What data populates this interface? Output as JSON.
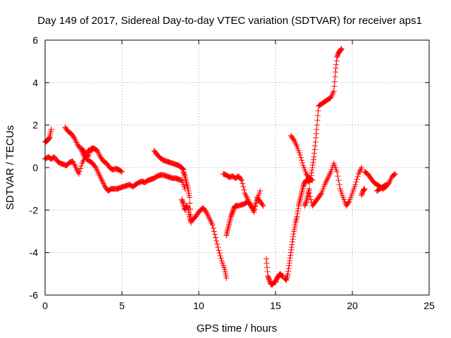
{
  "chart_data": {
    "type": "scatter",
    "title": "Day 149 of 2017, Sidereal Day-to-day VTEC variation (SDTVAR) for receiver aps1",
    "xlabel": "GPS time / hours",
    "ylabel": "SDTVAR / TECUs",
    "xlim": [
      0,
      25
    ],
    "ylim": [
      -6,
      6
    ],
    "xticks": [
      0,
      5,
      10,
      15,
      20,
      25
    ],
    "yticks": [
      -6,
      -4,
      -2,
      0,
      2,
      4,
      6
    ],
    "grid": true,
    "legend": "none",
    "marker": "plus",
    "color": "#ff0000",
    "series": [
      {
        "x": [
          0.0,
          0.1,
          0.2,
          0.3,
          0.4
        ],
        "y": [
          1.2,
          1.25,
          1.3,
          1.45,
          1.8
        ]
      },
      {
        "x": [
          0.0,
          0.2,
          0.4,
          0.6,
          0.8,
          1.0,
          1.2,
          1.4,
          1.6,
          1.8,
          2.0,
          2.2,
          2.4,
          2.6,
          2.8,
          3.0,
          3.2
        ],
        "y": [
          0.4,
          0.5,
          0.4,
          0.5,
          0.3,
          0.2,
          0.15,
          0.1,
          0.25,
          0.3,
          0.0,
          -0.3,
          0.2,
          0.5,
          0.8,
          0.85,
          0.9
        ]
      },
      {
        "x": [
          1.3,
          1.5,
          1.7,
          1.9,
          2.1,
          2.3,
          2.5,
          2.7,
          2.9,
          3.1,
          3.3,
          3.5,
          3.7,
          3.9,
          4.1,
          4.3,
          4.5,
          4.7,
          4.9,
          5.1,
          5.3,
          5.5,
          5.7,
          5.9,
          6.1,
          6.3,
          6.5,
          6.7,
          6.9,
          7.1,
          7.3,
          7.5,
          7.7,
          7.9,
          8.1,
          8.3,
          8.5,
          8.7,
          8.9,
          9.1
        ],
        "y": [
          1.9,
          1.7,
          1.6,
          1.4,
          1.1,
          0.9,
          0.6,
          0.4,
          0.3,
          0.2,
          0.0,
          -0.3,
          -0.6,
          -0.9,
          -1.1,
          -1.0,
          -1.0,
          -1.0,
          -0.95,
          -0.9,
          -0.85,
          -0.8,
          -0.9,
          -0.8,
          -0.7,
          -0.65,
          -0.7,
          -0.6,
          -0.55,
          -0.5,
          -0.4,
          -0.35,
          -0.35,
          -0.4,
          -0.45,
          -0.5,
          -0.5,
          -0.55,
          -0.6,
          -1.0
        ]
      },
      {
        "x": [
          2.4,
          2.6,
          2.8,
          3.0,
          3.2,
          3.4,
          3.6,
          3.8,
          4.0,
          4.2,
          4.4,
          4.6,
          4.8,
          5.0
        ],
        "y": [
          0.9,
          0.7,
          0.5,
          0.9,
          0.9,
          0.8,
          0.5,
          0.3,
          0.2,
          0.0,
          -0.1,
          -0.05,
          -0.1,
          -0.2
        ]
      },
      {
        "x": [
          7.1,
          7.3,
          7.5,
          7.7,
          7.9,
          8.1,
          8.3,
          8.5,
          8.7,
          8.9,
          9.0
        ],
        "y": [
          0.8,
          0.6,
          0.45,
          0.35,
          0.3,
          0.25,
          0.2,
          0.15,
          0.1,
          0.0,
          -0.1
        ]
      },
      {
        "x": [
          8.9,
          9.0,
          9.1,
          9.2,
          9.3,
          9.4,
          9.5
        ],
        "y": [
          -1.5,
          -1.7,
          -2.0,
          -1.8,
          -1.9,
          -2.3,
          -2.6
        ]
      },
      {
        "x": [
          9.0,
          9.1,
          9.2,
          9.3,
          9.4,
          9.5,
          9.7,
          9.9,
          10.1,
          10.3,
          10.5,
          10.7,
          10.9,
          11.1,
          11.3,
          11.5,
          11.7,
          11.8
        ],
        "y": [
          -0.2,
          -0.4,
          -0.7,
          -1.0,
          -1.4,
          -2.5,
          -2.4,
          -2.2,
          -2.0,
          -1.9,
          -2.1,
          -2.4,
          -2.7,
          -3.3,
          -3.9,
          -4.4,
          -4.8,
          -5.2
        ]
      },
      {
        "x": [
          11.8,
          11.9,
          12.0,
          12.1,
          12.2,
          12.3,
          12.4
        ],
        "y": [
          -3.2,
          -2.9,
          -2.6,
          -2.3,
          -2.1,
          -1.9,
          -1.8
        ]
      },
      {
        "x": [
          11.6,
          11.8,
          12.0,
          12.2,
          12.4,
          12.6,
          12.8,
          13.0,
          13.2,
          13.4,
          13.6,
          13.8,
          14.0,
          14.2
        ],
        "y": [
          -0.3,
          -0.35,
          -0.45,
          -0.4,
          -0.5,
          -0.4,
          -0.6,
          -1.2,
          -1.5,
          -1.8,
          -2.0,
          -1.4,
          -1.6,
          -1.8
        ]
      },
      {
        "x": [
          12.4,
          12.6,
          12.8,
          13.0,
          13.2,
          13.4,
          13.6,
          13.8,
          14.0
        ],
        "y": [
          -1.8,
          -1.8,
          -1.75,
          -1.7,
          -1.6,
          -1.8,
          -2.1,
          -1.5,
          -1.1
        ]
      },
      {
        "x": [
          14.4,
          14.5,
          14.6,
          14.7,
          14.8,
          14.9,
          15.0,
          15.1,
          15.2,
          15.3,
          15.4,
          15.5
        ],
        "y": [
          -4.3,
          -5.1,
          -5.3,
          -5.5,
          -5.5,
          -5.4,
          -5.4,
          -5.2,
          -5.1,
          -5.0,
          -5.1,
          -5.1
        ]
      },
      {
        "x": [
          15.6,
          15.7,
          15.8,
          15.9,
          16.0,
          16.1,
          16.2,
          16.3,
          16.4,
          16.5,
          16.6,
          16.7,
          16.8,
          16.9,
          17.0,
          17.1,
          17.2
        ],
        "y": [
          -5.2,
          -5.3,
          -5.0,
          -4.5,
          -4.0,
          -3.5,
          -3.0,
          -2.6,
          -2.3,
          -1.8,
          -1.5,
          -1.2,
          -0.9,
          -0.7,
          -0.6,
          -0.6,
          -0.7
        ]
      },
      {
        "x": [
          16.0,
          16.2,
          16.4,
          16.6,
          16.8,
          17.0,
          17.2,
          17.4
        ],
        "y": [
          1.5,
          1.3,
          1.0,
          0.6,
          0.1,
          -0.3,
          -0.5,
          -0.6
        ]
      },
      {
        "x": [
          17.3,
          17.4,
          17.5,
          17.6,
          17.7,
          17.8,
          18.0,
          18.2,
          18.4,
          18.6,
          18.8,
          18.9,
          19.0,
          19.1,
          19.2,
          19.3
        ],
        "y": [
          -0.5,
          0.0,
          0.5,
          1.2,
          2.0,
          2.9,
          3.0,
          3.1,
          3.2,
          3.3,
          3.6,
          4.5,
          5.2,
          5.4,
          5.5,
          5.6
        ]
      },
      {
        "x": [
          17.2,
          17.4,
          17.6,
          17.8,
          18.0,
          18.2,
          18.4,
          18.6,
          18.8,
          19.0,
          19.2,
          19.4,
          19.6,
          19.8,
          20.0,
          20.2,
          20.4,
          20.6
        ],
        "y": [
          -1.2,
          -1.8,
          -1.6,
          -1.4,
          -1.2,
          -0.8,
          -0.5,
          -0.2,
          0.2,
          -0.2,
          -1.0,
          -1.4,
          -1.8,
          -1.6,
          -1.2,
          -0.8,
          -0.3,
          0.0
        ]
      },
      {
        "x": [
          16.9,
          17.0,
          17.1,
          17.2
        ],
        "y": [
          -1.8,
          -1.6,
          -1.3,
          -1.0
        ]
      },
      {
        "x": [
          20.6,
          20.7,
          20.8
        ],
        "y": [
          -1.3,
          -1.1,
          -1.0
        ]
      },
      {
        "x": [
          20.8,
          21.0,
          21.2,
          21.4,
          21.6,
          21.8,
          22.0,
          22.2,
          22.4,
          22.6,
          22.8
        ],
        "y": [
          -0.2,
          -0.3,
          -0.5,
          -0.7,
          -0.8,
          -0.9,
          -1.0,
          -0.9,
          -0.7,
          -0.4,
          -0.3
        ]
      },
      {
        "x": [
          21.6,
          21.8,
          22.0,
          22.2
        ],
        "y": [
          -1.1,
          -1.0,
          -0.9,
          -0.8
        ]
      }
    ]
  }
}
